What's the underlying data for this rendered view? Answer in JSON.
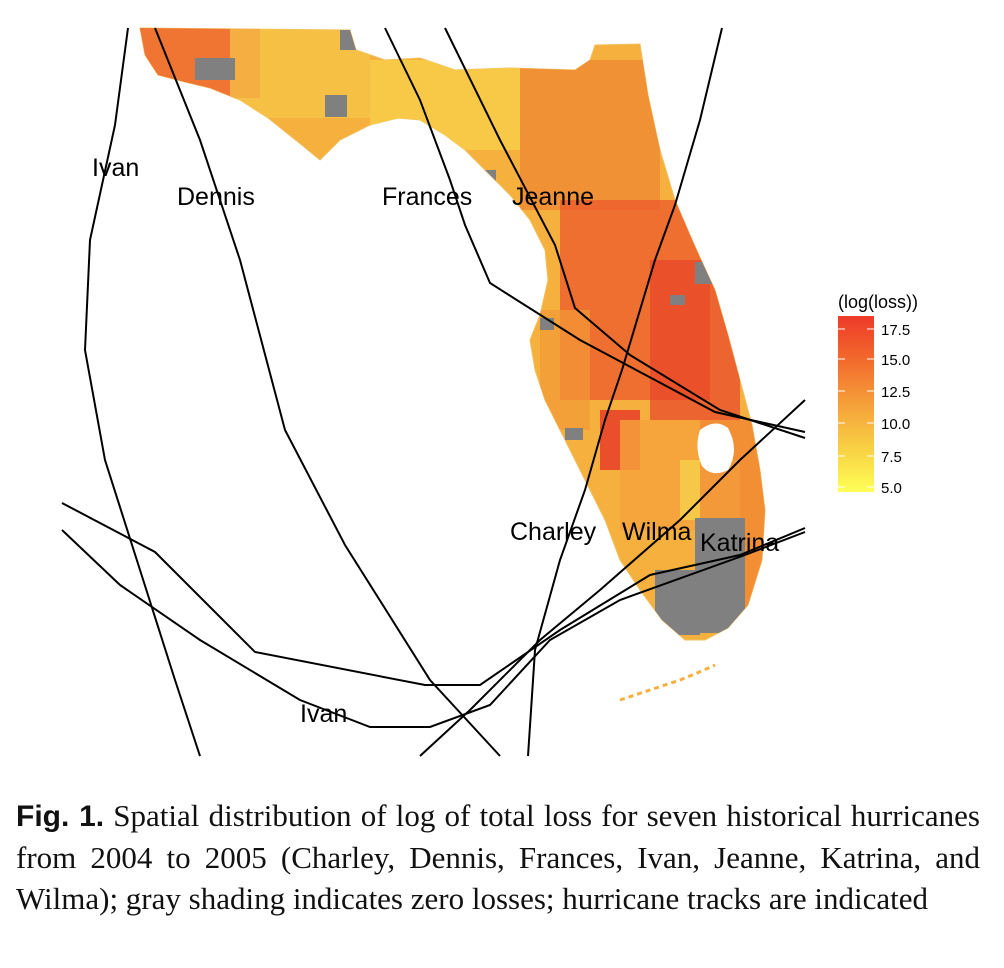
{
  "legend": {
    "title": "(log(loss))",
    "ticks": [
      "17.5",
      "15.0",
      "12.5",
      "10.0",
      "7.5",
      "5.0"
    ],
    "colors": [
      "#ee3a2a",
      "#f57a2e",
      "#f5a03a",
      "#f8c440",
      "#fbe34a",
      "#ffff55"
    ]
  },
  "colors": {
    "zero_loss": "#808080",
    "high": "#e8402a",
    "mid": "#f29a3a",
    "low": "#f7d24a",
    "track": "#000000"
  },
  "tracks": {
    "ivan_north": "Ivan",
    "dennis": "Dennis",
    "frances": "Frances",
    "jeanne": "Jeanne",
    "charley": "Charley",
    "wilma": "Wilma",
    "katrina": "Katrina",
    "ivan_south": "Ivan"
  },
  "caption": {
    "label": "Fig. 1.",
    "text": " Spatial distribution of log of total loss for seven historical hurricanes from 2004 to 2005 (Charley, Dennis, Frances, Ivan, Jeanne, Katrina, and Wilma); gray shading indicates zero losses; hurricane tracks are indicated"
  }
}
